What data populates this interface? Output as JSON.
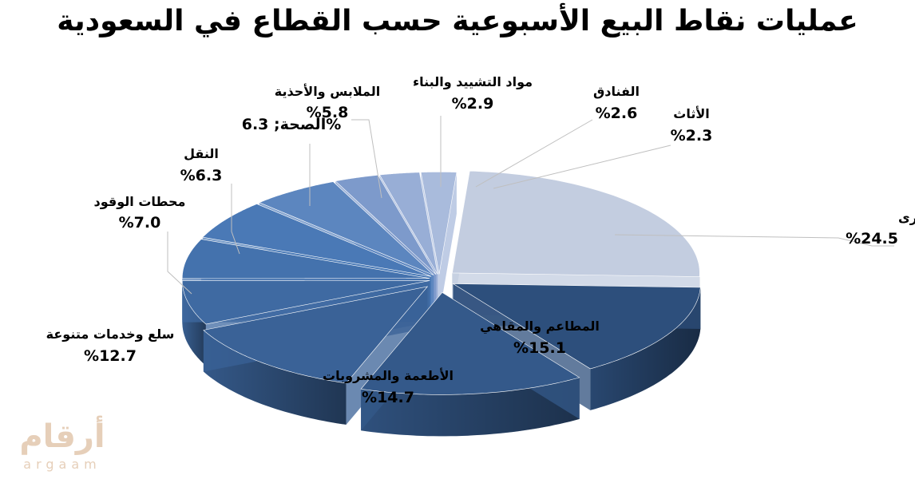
{
  "chart_data": {
    "type": "pie",
    "title": "عمليات نقاط البيع الأسبوعية حسب القطاع في السعودية",
    "slices": [
      {
        "name": "أخرى",
        "value": 24.5,
        "label": "%24.5",
        "color": "#c3cde0"
      },
      {
        "name": "المطاعم والمقاهي",
        "value": 15.1,
        "label": "%15.1",
        "color": "#2d4f7c"
      },
      {
        "name": "الأطعمة والمشروبات",
        "value": 14.7,
        "label": "%14.7",
        "color": "#34598a"
      },
      {
        "name": "سلع وخدمات متنوعة",
        "value": 12.7,
        "label": "%12.7",
        "color": "#3a6297"
      },
      {
        "name": "محطات الوقود",
        "value": 7.0,
        "label": "%7.0",
        "color": "#3f6aa2"
      },
      {
        "name": "النقل",
        "value": 6.3,
        "label": "%6.3",
        "color": "#4472ad"
      },
      {
        "name": "الصحة",
        "value": 6.3,
        "label": "الصحة; 6.3%",
        "color": "#4a79b6"
      },
      {
        "name": "الملابس والأحذية",
        "value": 5.8,
        "label": "%5.8",
        "color": "#5c86bf"
      },
      {
        "name": "مواد التشييد والبناء",
        "value": 2.9,
        "label": "%2.9",
        "color": "#7d9acb"
      },
      {
        "name": "الفنادق",
        "value": 2.6,
        "label": "%2.6",
        "color": "#98aed6"
      },
      {
        "name": "الأثاث",
        "value": 2.3,
        "label": "%2.3",
        "color": "#a9bbdc"
      }
    ]
  },
  "watermark": {
    "arabic": "أرقام",
    "latin": "argaam"
  }
}
